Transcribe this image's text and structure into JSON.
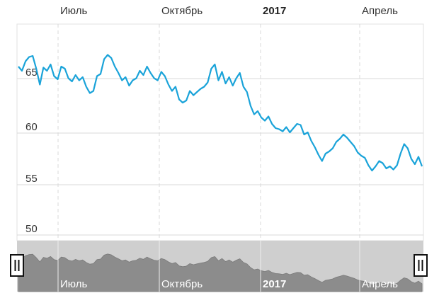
{
  "chart_data": {
    "type": "line",
    "x_ticks": [
      {
        "label": "Июль",
        "bold": false
      },
      {
        "label": "Октябрь",
        "bold": false
      },
      {
        "label": "2017",
        "bold": true
      },
      {
        "label": "Апрель",
        "bold": false
      }
    ],
    "y_ticks": [
      "50",
      "55",
      "60",
      "65"
    ],
    "ylim": [
      49.5,
      69.5
    ],
    "grid": true,
    "series": [
      {
        "color": "#1aa3d9",
        "values": [
          65.7,
          65.3,
          66.2,
          66.6,
          66.7,
          65.5,
          64.0,
          65.6,
          65.3,
          65.9,
          64.8,
          64.5,
          65.7,
          65.5,
          64.6,
          64.3,
          64.9,
          64.4,
          64.7,
          63.8,
          63.2,
          63.4,
          64.8,
          65.0,
          66.4,
          66.8,
          66.5,
          65.7,
          65.1,
          64.4,
          64.7,
          63.9,
          64.4,
          64.6,
          65.3,
          64.9,
          65.7,
          65.1,
          64.6,
          64.4,
          65.2,
          64.8,
          64.0,
          63.4,
          63.8,
          62.6,
          62.3,
          62.5,
          63.4,
          63.0,
          63.3,
          63.6,
          63.8,
          64.2,
          65.5,
          65.9,
          64.4,
          65.2,
          64.1,
          64.7,
          63.9,
          64.6,
          65.1,
          63.8,
          63.3,
          62.0,
          61.2,
          61.5,
          60.9,
          60.6,
          61.0,
          60.3,
          59.9,
          59.8,
          59.6,
          60.0,
          59.5,
          59.9,
          60.3,
          60.2,
          59.3,
          59.5,
          58.7,
          58.1,
          57.4,
          56.8,
          57.5,
          57.7,
          58.0,
          58.6,
          58.9,
          59.3,
          59.0,
          58.6,
          58.2,
          57.6,
          57.3,
          57.1,
          56.4,
          55.9,
          56.3,
          56.8,
          56.6,
          56.1,
          56.3,
          56.0,
          56.4,
          57.5,
          58.4,
          58.0,
          57.0,
          56.5,
          57.2,
          56.3
        ]
      }
    ]
  },
  "navigator": {
    "x_ticks": [
      {
        "label": "Июль",
        "bold": false
      },
      {
        "label": "Октябрь",
        "bold": false
      },
      {
        "label": "2017",
        "bold": true
      },
      {
        "label": "Апрель",
        "bold": false
      }
    ]
  },
  "colors": {
    "line": "#1aa3d9",
    "grid": "#d8d8d8",
    "navigator_bg": "#cfcfcf",
    "navigator_area": "#8c8c8c"
  }
}
